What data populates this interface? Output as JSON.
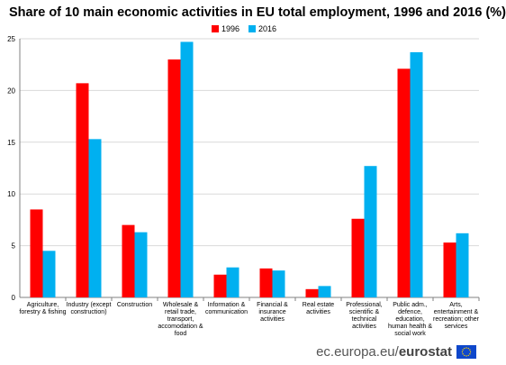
{
  "title": "Share of 10 main economic activities in EU total employment, 1996 and 2016 (%)",
  "footer": {
    "site": "ec.europa.eu/",
    "brand": "eurostat",
    "flag_icon": "eu-flag-icon"
  },
  "chart_data": {
    "type": "bar",
    "title": "Share of 10 main economic activities in EU total employment, 1996 and 2016 (%)",
    "xlabel": "",
    "ylabel": "",
    "ylim": [
      0,
      25
    ],
    "yticks": [
      0,
      5,
      10,
      15,
      20,
      25
    ],
    "grid": true,
    "legend_position": "top-center",
    "categories": [
      [
        "Agriculture,",
        "forestry & fishing"
      ],
      [
        "Industry (except",
        "construction)"
      ],
      [
        "Construction"
      ],
      [
        "Wholesale &",
        "retail trade,",
        "transport,",
        "accomodation &",
        "food"
      ],
      [
        "Information &",
        "communication"
      ],
      [
        "Financial &",
        "insurance",
        "activities"
      ],
      [
        "Real estate",
        "activities"
      ],
      [
        "Professional,",
        "scientific &",
        "technical",
        "activities"
      ],
      [
        "Public adm.,",
        "defence,",
        "education,",
        "human health &",
        "social work"
      ],
      [
        "Arts,",
        "entertainment &",
        "recreation; other",
        "services"
      ]
    ],
    "series": [
      {
        "name": "1996",
        "color": "#ff0000",
        "values": [
          8.5,
          20.7,
          7.0,
          23.0,
          2.2,
          2.8,
          0.8,
          7.6,
          22.1,
          5.3
        ]
      },
      {
        "name": "2016",
        "color": "#00b0f0",
        "values": [
          4.5,
          15.3,
          6.3,
          24.7,
          2.9,
          2.6,
          1.1,
          12.7,
          23.7,
          6.2
        ]
      }
    ]
  }
}
